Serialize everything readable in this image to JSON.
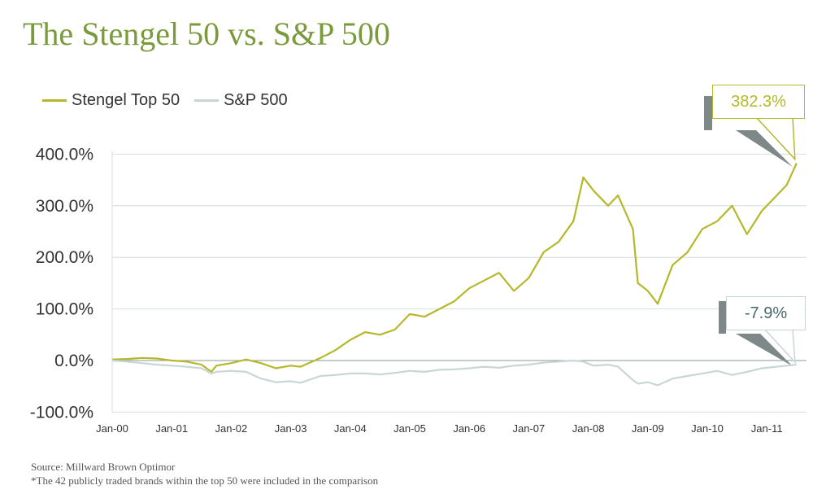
{
  "title": "The Stengel 50 vs. S&P 500",
  "footer": {
    "source": "Source: Millward Brown Optimor",
    "note": "*The 42 publicly traded brands within the top 50 were included in the comparison"
  },
  "callouts": {
    "stengel": "382.3%",
    "sp500": "-7.9%"
  },
  "chart_data": {
    "type": "line",
    "title": "The Stengel 50 vs. S&P 500",
    "xlabel": "",
    "ylabel": "",
    "x_ticks": [
      "Jan-00",
      "Jan-01",
      "Jan-02",
      "Jan-03",
      "Jan-04",
      "Jan-05",
      "Jan-06",
      "Jan-07",
      "Jan-08",
      "Jan-09",
      "Jan-10",
      "Jan-11"
    ],
    "y_ticks": [
      "-100.0%",
      "0.0%",
      "100.0%",
      "200.0%",
      "300.0%",
      "400.0%"
    ],
    "ylim": [
      -100,
      400
    ],
    "grid": "horizontal",
    "legend_position": "top-left",
    "colors": {
      "stengel": "#b5b82a",
      "sp500": "#c9d6d6",
      "zero_line": "#8a9a9a",
      "grid": "#d5dede"
    },
    "series": [
      {
        "name": "Stengel Top 50",
        "x": [
          "2000-01",
          "2000-04",
          "2000-07",
          "2000-10",
          "2001-01",
          "2001-04",
          "2001-07",
          "2001-09",
          "2001-10",
          "2002-01",
          "2002-04",
          "2002-07",
          "2002-10",
          "2003-01",
          "2003-03",
          "2003-07",
          "2003-10",
          "2004-01",
          "2004-04",
          "2004-07",
          "2004-10",
          "2005-01",
          "2005-04",
          "2005-07",
          "2005-10",
          "2006-01",
          "2006-04",
          "2006-07",
          "2006-10",
          "2007-01",
          "2007-04",
          "2007-07",
          "2007-10",
          "2007-12",
          "2008-02",
          "2008-05",
          "2008-07",
          "2008-10",
          "2008-11",
          "2009-01",
          "2009-03",
          "2009-06",
          "2009-09",
          "2009-12",
          "2010-03",
          "2010-06",
          "2010-09",
          "2010-12",
          "2011-03",
          "2011-05",
          "2011-07"
        ],
        "values": [
          2,
          3,
          5,
          4,
          0,
          -2,
          -8,
          -22,
          -10,
          -5,
          2,
          -5,
          -15,
          -10,
          -12,
          5,
          20,
          40,
          55,
          50,
          60,
          90,
          85,
          100,
          115,
          140,
          155,
          170,
          135,
          160,
          210,
          230,
          270,
          355,
          330,
          300,
          320,
          255,
          150,
          135,
          110,
          185,
          210,
          255,
          270,
          300,
          245,
          290,
          320,
          340,
          382.3
        ]
      },
      {
        "name": "S&P 500",
        "x": [
          "2000-01",
          "2000-04",
          "2000-07",
          "2000-10",
          "2001-01",
          "2001-04",
          "2001-07",
          "2001-09",
          "2001-10",
          "2002-01",
          "2002-04",
          "2002-07",
          "2002-10",
          "2003-01",
          "2003-03",
          "2003-07",
          "2003-10",
          "2004-01",
          "2004-04",
          "2004-07",
          "2004-10",
          "2005-01",
          "2005-04",
          "2005-07",
          "2005-10",
          "2006-01",
          "2006-04",
          "2006-07",
          "2006-10",
          "2007-01",
          "2007-04",
          "2007-07",
          "2007-10",
          "2007-12",
          "2008-02",
          "2008-05",
          "2008-07",
          "2008-10",
          "2008-11",
          "2009-01",
          "2009-03",
          "2009-06",
          "2009-09",
          "2009-12",
          "2010-03",
          "2010-06",
          "2010-09",
          "2010-12",
          "2011-03",
          "2011-05",
          "2011-07"
        ],
        "values": [
          0,
          -2,
          -5,
          -8,
          -10,
          -12,
          -15,
          -25,
          -22,
          -20,
          -22,
          -35,
          -42,
          -40,
          -43,
          -30,
          -28,
          -25,
          -25,
          -27,
          -24,
          -20,
          -22,
          -18,
          -17,
          -15,
          -12,
          -14,
          -10,
          -8,
          -4,
          -2,
          0,
          -2,
          -10,
          -8,
          -12,
          -38,
          -45,
          -42,
          -48,
          -35,
          -30,
          -25,
          -20,
          -28,
          -22,
          -15,
          -12,
          -10,
          -7.9
        ]
      }
    ]
  }
}
